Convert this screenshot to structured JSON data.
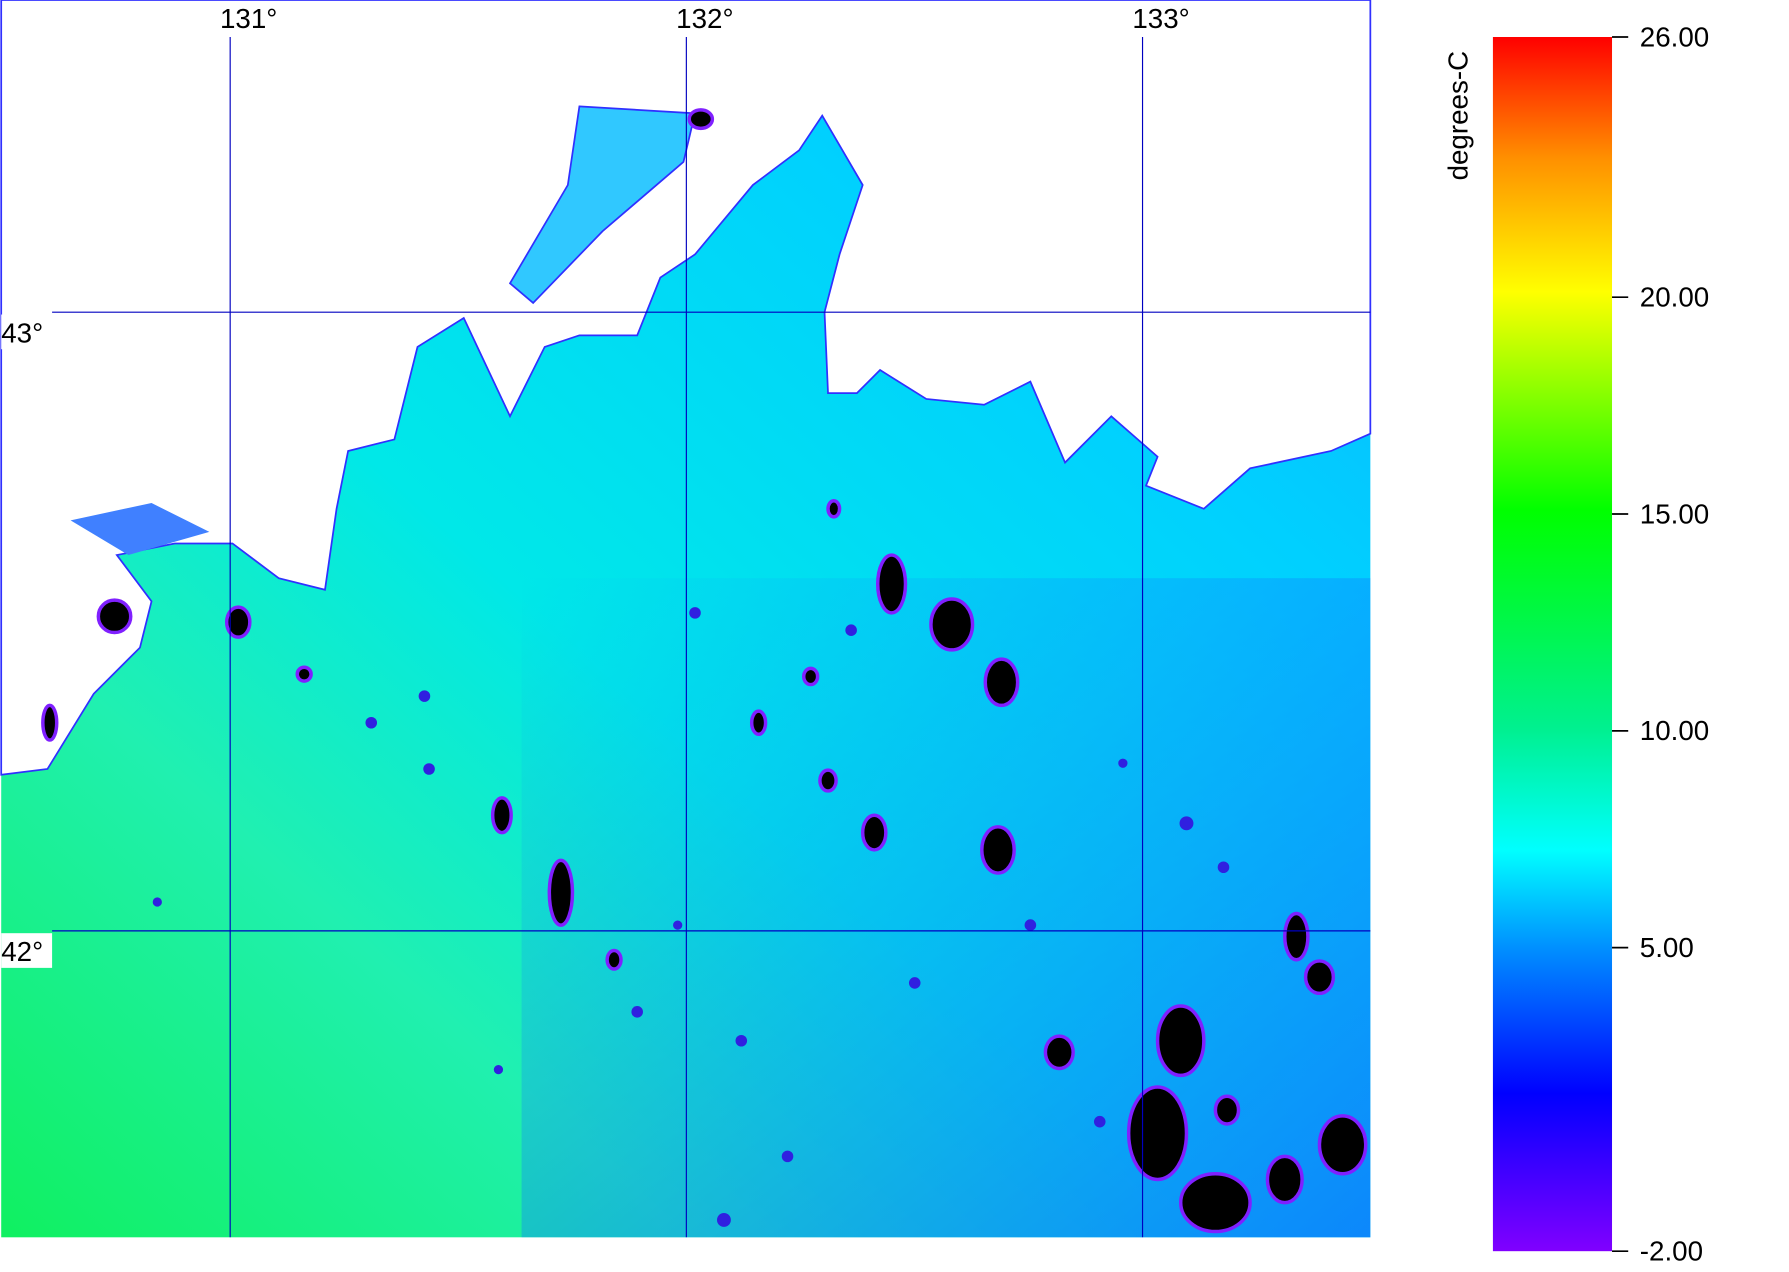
{
  "map": {
    "longitude_ticks": [
      {
        "value": 131,
        "label": "131°"
      },
      {
        "value": 132,
        "label": "132°"
      },
      {
        "value": 133,
        "label": "133°"
      }
    ],
    "latitude_ticks": [
      {
        "value": 43,
        "label": "43°"
      },
      {
        "value": 42,
        "label": "42°"
      }
    ]
  },
  "colorbar": {
    "label": "degrees-C",
    "range": [
      -2,
      26
    ],
    "ticks": [
      {
        "value": 26,
        "label": "26.00"
      },
      {
        "value": 20,
        "label": "20.00"
      },
      {
        "value": 15,
        "label": "15.00"
      },
      {
        "value": 10,
        "label": "10.00"
      },
      {
        "value": 5,
        "label": "5.00"
      },
      {
        "value": -2,
        "label": "-2.00"
      }
    ]
  }
}
